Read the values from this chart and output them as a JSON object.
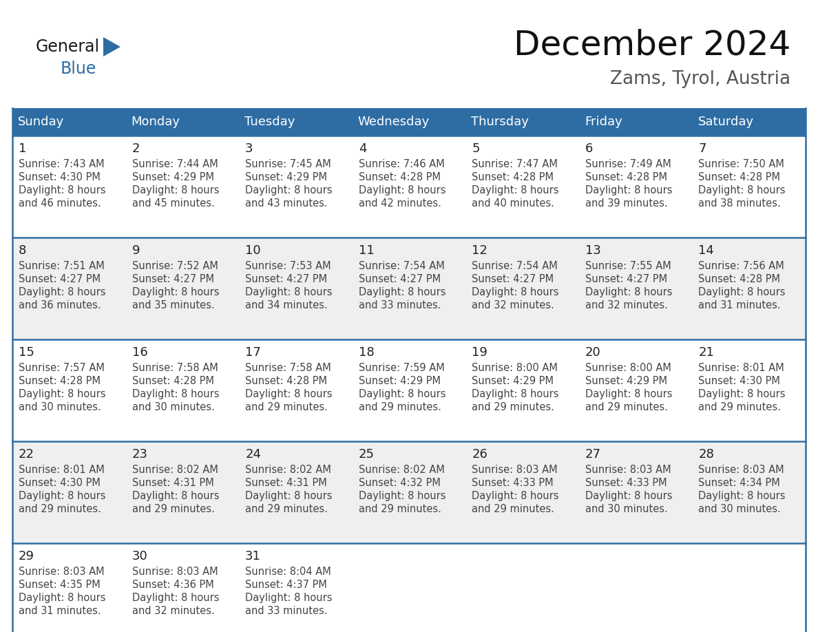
{
  "title": "December 2024",
  "subtitle": "Zams, Tyrol, Austria",
  "header_bg": "#2E6DA4",
  "header_text_color": "#FFFFFF",
  "days_of_week": [
    "Sunday",
    "Monday",
    "Tuesday",
    "Wednesday",
    "Thursday",
    "Friday",
    "Saturday"
  ],
  "row_bg_even": "#FFFFFF",
  "row_bg_odd": "#EFEFEF",
  "border_color": "#2E6DA4",
  "cell_border_color": "#AAAAAA",
  "day_num_color": "#222222",
  "info_text_color": "#444444",
  "calendar_data": [
    [
      {
        "day": 1,
        "sunrise": "7:43 AM",
        "sunset": "4:30 PM",
        "daylight": "8 hours and 46 minutes."
      },
      {
        "day": 2,
        "sunrise": "7:44 AM",
        "sunset": "4:29 PM",
        "daylight": "8 hours and 45 minutes."
      },
      {
        "day": 3,
        "sunrise": "7:45 AM",
        "sunset": "4:29 PM",
        "daylight": "8 hours and 43 minutes."
      },
      {
        "day": 4,
        "sunrise": "7:46 AM",
        "sunset": "4:28 PM",
        "daylight": "8 hours and 42 minutes."
      },
      {
        "day": 5,
        "sunrise": "7:47 AM",
        "sunset": "4:28 PM",
        "daylight": "8 hours and 40 minutes."
      },
      {
        "day": 6,
        "sunrise": "7:49 AM",
        "sunset": "4:28 PM",
        "daylight": "8 hours and 39 minutes."
      },
      {
        "day": 7,
        "sunrise": "7:50 AM",
        "sunset": "4:28 PM",
        "daylight": "8 hours and 38 minutes."
      }
    ],
    [
      {
        "day": 8,
        "sunrise": "7:51 AM",
        "sunset": "4:27 PM",
        "daylight": "8 hours and 36 minutes."
      },
      {
        "day": 9,
        "sunrise": "7:52 AM",
        "sunset": "4:27 PM",
        "daylight": "8 hours and 35 minutes."
      },
      {
        "day": 10,
        "sunrise": "7:53 AM",
        "sunset": "4:27 PM",
        "daylight": "8 hours and 34 minutes."
      },
      {
        "day": 11,
        "sunrise": "7:54 AM",
        "sunset": "4:27 PM",
        "daylight": "8 hours and 33 minutes."
      },
      {
        "day": 12,
        "sunrise": "7:54 AM",
        "sunset": "4:27 PM",
        "daylight": "8 hours and 32 minutes."
      },
      {
        "day": 13,
        "sunrise": "7:55 AM",
        "sunset": "4:27 PM",
        "daylight": "8 hours and 32 minutes."
      },
      {
        "day": 14,
        "sunrise": "7:56 AM",
        "sunset": "4:28 PM",
        "daylight": "8 hours and 31 minutes."
      }
    ],
    [
      {
        "day": 15,
        "sunrise": "7:57 AM",
        "sunset": "4:28 PM",
        "daylight": "8 hours and 30 minutes."
      },
      {
        "day": 16,
        "sunrise": "7:58 AM",
        "sunset": "4:28 PM",
        "daylight": "8 hours and 30 minutes."
      },
      {
        "day": 17,
        "sunrise": "7:58 AM",
        "sunset": "4:28 PM",
        "daylight": "8 hours and 29 minutes."
      },
      {
        "day": 18,
        "sunrise": "7:59 AM",
        "sunset": "4:29 PM",
        "daylight": "8 hours and 29 minutes."
      },
      {
        "day": 19,
        "sunrise": "8:00 AM",
        "sunset": "4:29 PM",
        "daylight": "8 hours and 29 minutes."
      },
      {
        "day": 20,
        "sunrise": "8:00 AM",
        "sunset": "4:29 PM",
        "daylight": "8 hours and 29 minutes."
      },
      {
        "day": 21,
        "sunrise": "8:01 AM",
        "sunset": "4:30 PM",
        "daylight": "8 hours and 29 minutes."
      }
    ],
    [
      {
        "day": 22,
        "sunrise": "8:01 AM",
        "sunset": "4:30 PM",
        "daylight": "8 hours and 29 minutes."
      },
      {
        "day": 23,
        "sunrise": "8:02 AM",
        "sunset": "4:31 PM",
        "daylight": "8 hours and 29 minutes."
      },
      {
        "day": 24,
        "sunrise": "8:02 AM",
        "sunset": "4:31 PM",
        "daylight": "8 hours and 29 minutes."
      },
      {
        "day": 25,
        "sunrise": "8:02 AM",
        "sunset": "4:32 PM",
        "daylight": "8 hours and 29 minutes."
      },
      {
        "day": 26,
        "sunrise": "8:03 AM",
        "sunset": "4:33 PM",
        "daylight": "8 hours and 29 minutes."
      },
      {
        "day": 27,
        "sunrise": "8:03 AM",
        "sunset": "4:33 PM",
        "daylight": "8 hours and 30 minutes."
      },
      {
        "day": 28,
        "sunrise": "8:03 AM",
        "sunset": "4:34 PM",
        "daylight": "8 hours and 30 minutes."
      }
    ],
    [
      {
        "day": 29,
        "sunrise": "8:03 AM",
        "sunset": "4:35 PM",
        "daylight": "8 hours and 31 minutes."
      },
      {
        "day": 30,
        "sunrise": "8:03 AM",
        "sunset": "4:36 PM",
        "daylight": "8 hours and 32 minutes."
      },
      {
        "day": 31,
        "sunrise": "8:04 AM",
        "sunset": "4:37 PM",
        "daylight": "8 hours and 33 minutes."
      },
      null,
      null,
      null,
      null
    ]
  ]
}
